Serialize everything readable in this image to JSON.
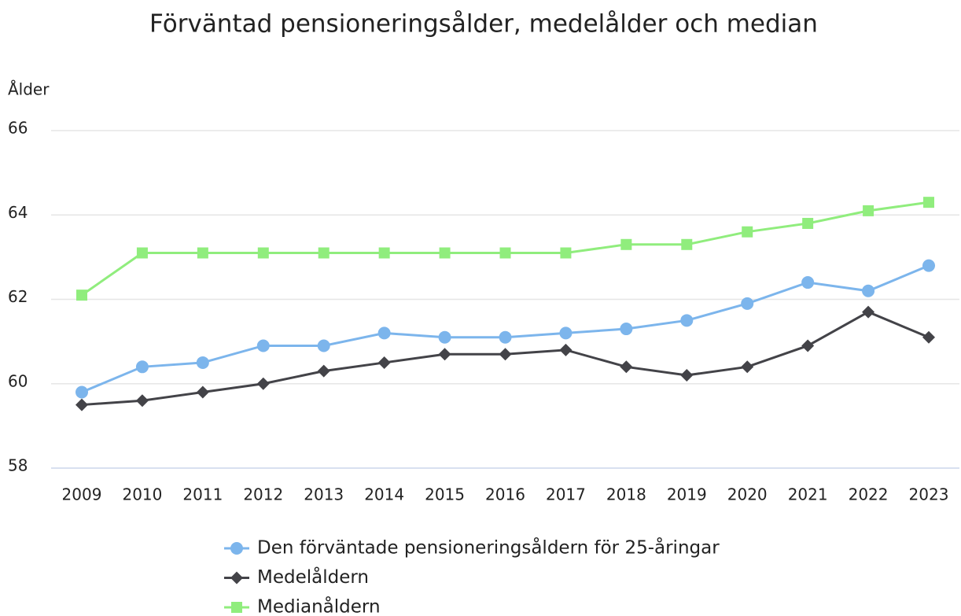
{
  "chart_data": {
    "type": "line",
    "title": "Förväntad pensioneringsålder, medelålder och median",
    "y_label": "Ålder",
    "categories": [
      "2009",
      "2010",
      "2011",
      "2012",
      "2013",
      "2014",
      "2015",
      "2016",
      "2017",
      "2018",
      "2019",
      "2020",
      "2021",
      "2022",
      "2023"
    ],
    "series": [
      {
        "name": "Den förväntade pensioneringsåldern för 25-åringar",
        "color": "#7cb5ec",
        "marker": "circle",
        "values": [
          59.8,
          60.4,
          60.5,
          60.9,
          60.9,
          61.2,
          61.1,
          61.1,
          61.2,
          61.3,
          61.5,
          61.9,
          62.4,
          62.2,
          62.8
        ]
      },
      {
        "name": "Medelåldern",
        "color": "#434348",
        "marker": "diamond",
        "values": [
          59.5,
          59.6,
          59.8,
          60.0,
          60.3,
          60.5,
          60.7,
          60.7,
          60.8,
          60.4,
          60.2,
          60.4,
          60.9,
          61.7,
          61.1
        ]
      },
      {
        "name": "Medianåldern",
        "color": "#90ed7d",
        "marker": "square",
        "values": [
          62.1,
          63.1,
          63.1,
          63.1,
          63.1,
          63.1,
          63.1,
          63.1,
          63.1,
          63.3,
          63.3,
          63.6,
          63.8,
          64.1,
          64.3
        ]
      }
    ],
    "ylim": [
      58,
      66
    ],
    "yticks": [
      58,
      60,
      62,
      64,
      66
    ],
    "grid": true,
    "legend": "bottom"
  }
}
